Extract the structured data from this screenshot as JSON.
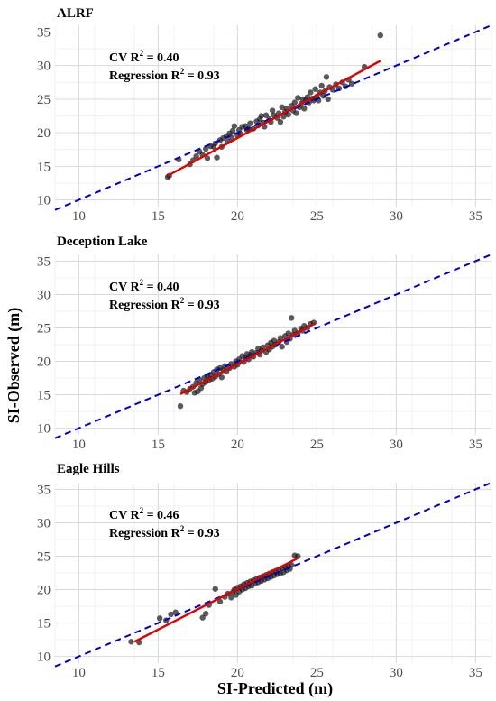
{
  "figure": {
    "xlabel": "SI-Predicted (m)",
    "ylabel": "SI-Observed (m)",
    "colors": {
      "points": "#1a1a1a",
      "regression": "#e00000",
      "one_to_one": "#0000c8",
      "grid": "#d9d9d9"
    }
  },
  "chart_data": [
    {
      "type": "scatter",
      "title": "ALRF",
      "annotation": {
        "cv_text": "CV R",
        "cv_value": " = 0.40",
        "reg_text": "Regression R",
        "reg_value": " = 0.93",
        "sup": "2"
      },
      "xlim": [
        8.5,
        36
      ],
      "ylim": [
        9,
        36
      ],
      "xticks": [
        10,
        15,
        20,
        25,
        30,
        35
      ],
      "yticks": [
        10,
        15,
        20,
        25,
        30,
        35
      ],
      "grid": true,
      "one_to_one_line": {
        "x": [
          8.5,
          36
        ],
        "y": [
          8.5,
          36
        ]
      },
      "regression_line": {
        "x": [
          15.6,
          29.0
        ],
        "y": [
          13.6,
          30.7
        ]
      },
      "points": [
        [
          15.6,
          13.4
        ],
        [
          15.7,
          13.6
        ],
        [
          16.3,
          16.0
        ],
        [
          17.0,
          15.3
        ],
        [
          17.2,
          15.9
        ],
        [
          17.4,
          16.5
        ],
        [
          17.6,
          17.2
        ],
        [
          17.8,
          16.7
        ],
        [
          18.0,
          17.6
        ],
        [
          18.1,
          16.2
        ],
        [
          18.3,
          18.0
        ],
        [
          18.5,
          17.9
        ],
        [
          18.6,
          18.4
        ],
        [
          18.7,
          16.3
        ],
        [
          18.9,
          18.9
        ],
        [
          19.0,
          17.9
        ],
        [
          19.1,
          19.2
        ],
        [
          19.3,
          19.5
        ],
        [
          19.4,
          18.7
        ],
        [
          19.5,
          19.9
        ],
        [
          19.6,
          19.3
        ],
        [
          19.7,
          20.3
        ],
        [
          19.8,
          21.0
        ],
        [
          20.0,
          19.6
        ],
        [
          20.1,
          20.4
        ],
        [
          20.2,
          19.8
        ],
        [
          20.3,
          20.9
        ],
        [
          20.5,
          21.0
        ],
        [
          20.6,
          20.4
        ],
        [
          20.7,
          20.6
        ],
        [
          20.8,
          21.4
        ],
        [
          21.0,
          20.6
        ],
        [
          21.2,
          21.7
        ],
        [
          21.3,
          21.1
        ],
        [
          21.4,
          22.0
        ],
        [
          21.5,
          22.5
        ],
        [
          21.6,
          21.5
        ],
        [
          21.7,
          20.9
        ],
        [
          21.8,
          22.6
        ],
        [
          22.0,
          22.0
        ],
        [
          22.1,
          21.6
        ],
        [
          22.2,
          23.3
        ],
        [
          22.3,
          22.6
        ],
        [
          22.5,
          22.2
        ],
        [
          22.6,
          22.9
        ],
        [
          22.7,
          21.6
        ],
        [
          22.8,
          23.8
        ],
        [
          22.9,
          22.4
        ],
        [
          23.0,
          23.1
        ],
        [
          23.1,
          23.6
        ],
        [
          23.2,
          22.7
        ],
        [
          23.4,
          24.0
        ],
        [
          23.5,
          23.3
        ],
        [
          23.6,
          24.5
        ],
        [
          23.7,
          22.9
        ],
        [
          23.8,
          25.2
        ],
        [
          23.9,
          23.8
        ],
        [
          24.0,
          24.3
        ],
        [
          24.1,
          25.0
        ],
        [
          24.2,
          23.6
        ],
        [
          24.3,
          24.8
        ],
        [
          24.4,
          25.3
        ],
        [
          24.5,
          24.5
        ],
        [
          24.6,
          26.0
        ],
        [
          24.7,
          25.1
        ],
        [
          24.8,
          24.8
        ],
        [
          24.9,
          26.5
        ],
        [
          25.0,
          25.4
        ],
        [
          25.1,
          24.8
        ],
        [
          25.2,
          26.0
        ],
        [
          25.3,
          27.0
        ],
        [
          25.4,
          25.5
        ],
        [
          25.5,
          26.2
        ],
        [
          25.6,
          28.3
        ],
        [
          25.7,
          25.0
        ],
        [
          25.8,
          26.8
        ],
        [
          26.0,
          26.4
        ],
        [
          26.2,
          27.2
        ],
        [
          26.4,
          26.6
        ],
        [
          26.6,
          27.5
        ],
        [
          26.8,
          26.9
        ],
        [
          27.0,
          27.9
        ],
        [
          27.2,
          27.3
        ],
        [
          28.0,
          29.8
        ],
        [
          29.0,
          34.5
        ]
      ]
    },
    {
      "type": "scatter",
      "title": "Deception Lake",
      "annotation": {
        "cv_text": "CV R",
        "cv_value": " = 0.40",
        "reg_text": "Regression R",
        "reg_value": " = 0.93",
        "sup": "2"
      },
      "xlim": [
        8.5,
        36
      ],
      "ylim": [
        9,
        36
      ],
      "xticks": [
        10,
        15,
        20,
        25,
        30,
        35
      ],
      "yticks": [
        10,
        15,
        20,
        25,
        30,
        35
      ],
      "grid": true,
      "one_to_one_line": {
        "x": [
          8.5,
          36
        ],
        "y": [
          8.5,
          36
        ]
      },
      "regression_line": {
        "x": [
          16.4,
          24.9
        ],
        "y": [
          15.1,
          25.7
        ]
      },
      "points": [
        [
          16.4,
          13.3
        ],
        [
          16.6,
          15.6
        ],
        [
          16.8,
          15.4
        ],
        [
          17.0,
          15.9
        ],
        [
          17.2,
          16.2
        ],
        [
          17.3,
          15.3
        ],
        [
          17.4,
          16.8
        ],
        [
          17.5,
          15.5
        ],
        [
          17.6,
          17.2
        ],
        [
          17.7,
          16.0
        ],
        [
          17.8,
          16.6
        ],
        [
          17.9,
          17.5
        ],
        [
          18.0,
          16.9
        ],
        [
          18.1,
          17.8
        ],
        [
          18.2,
          17.2
        ],
        [
          18.3,
          18.0
        ],
        [
          18.4,
          17.4
        ],
        [
          18.5,
          18.4
        ],
        [
          18.6,
          17.7
        ],
        [
          18.7,
          18.8
        ],
        [
          18.8,
          18.1
        ],
        [
          18.9,
          19.0
        ],
        [
          19.0,
          17.6
        ],
        [
          19.1,
          18.7
        ],
        [
          19.2,
          19.3
        ],
        [
          19.3,
          18.5
        ],
        [
          19.5,
          19.0
        ],
        [
          19.6,
          19.6
        ],
        [
          19.8,
          19.2
        ],
        [
          19.9,
          20.0
        ],
        [
          20.0,
          19.5
        ],
        [
          20.1,
          20.3
        ],
        [
          20.3,
          20.8
        ],
        [
          20.4,
          19.9
        ],
        [
          20.5,
          20.5
        ],
        [
          20.6,
          21.1
        ],
        [
          20.7,
          20.3
        ],
        [
          20.8,
          20.9
        ],
        [
          20.9,
          21.4
        ],
        [
          21.0,
          20.7
        ],
        [
          21.2,
          21.3
        ],
        [
          21.3,
          21.9
        ],
        [
          21.4,
          21.0
        ],
        [
          21.5,
          21.6
        ],
        [
          21.6,
          22.1
        ],
        [
          21.8,
          21.4
        ],
        [
          21.9,
          22.4
        ],
        [
          22.0,
          21.8
        ],
        [
          22.1,
          22.8
        ],
        [
          22.2,
          22.2
        ],
        [
          22.3,
          23.1
        ],
        [
          22.4,
          22.5
        ],
        [
          22.6,
          22.9
        ],
        [
          22.7,
          23.5
        ],
        [
          22.8,
          22.2
        ],
        [
          23.0,
          23.8
        ],
        [
          23.1,
          22.9
        ],
        [
          23.2,
          24.2
        ],
        [
          23.3,
          23.4
        ],
        [
          23.4,
          26.5
        ],
        [
          23.5,
          24.0
        ],
        [
          23.6,
          24.6
        ],
        [
          23.8,
          24.2
        ],
        [
          24.0,
          24.9
        ],
        [
          24.1,
          24.6
        ],
        [
          24.2,
          25.3
        ],
        [
          24.4,
          25.0
        ],
        [
          24.6,
          25.6
        ],
        [
          24.8,
          25.8
        ]
      ]
    },
    {
      "type": "scatter",
      "title": "Eagle Hills",
      "annotation": {
        "cv_text": "CV R",
        "cv_value": " = 0.46",
        "reg_text": "Regression R",
        "reg_value": " = 0.93",
        "sup": "2"
      },
      "xlim": [
        8.5,
        36
      ],
      "ylim": [
        9,
        36
      ],
      "xticks": [
        10,
        15,
        20,
        25,
        30,
        35
      ],
      "yticks": [
        10,
        15,
        20,
        25,
        30,
        35
      ],
      "grid": true,
      "one_to_one_line": {
        "x": [
          8.5,
          36
        ],
        "y": [
          8.5,
          36
        ]
      },
      "regression_line": {
        "x": [
          13.5,
          23.8
        ],
        "y": [
          12.2,
          24.7
        ]
      },
      "points": [
        [
          13.3,
          12.2
        ],
        [
          13.8,
          12.1
        ],
        [
          15.1,
          15.7
        ],
        [
          15.5,
          15.4
        ],
        [
          15.8,
          16.3
        ],
        [
          16.1,
          16.6
        ],
        [
          17.8,
          15.8
        ],
        [
          18.0,
          16.4
        ],
        [
          18.2,
          17.7
        ],
        [
          18.6,
          20.1
        ],
        [
          18.9,
          18.2
        ],
        [
          19.2,
          18.9
        ],
        [
          19.4,
          19.4
        ],
        [
          19.6,
          18.8
        ],
        [
          19.7,
          19.6
        ],
        [
          19.8,
          20.0
        ],
        [
          19.9,
          19.2
        ],
        [
          20.0,
          20.3
        ],
        [
          20.1,
          19.7
        ],
        [
          20.2,
          20.5
        ],
        [
          20.3,
          20.0
        ],
        [
          20.4,
          20.8
        ],
        [
          20.5,
          20.2
        ],
        [
          20.6,
          21.0
        ],
        [
          20.7,
          20.5
        ],
        [
          20.8,
          21.2
        ],
        [
          20.9,
          20.6
        ],
        [
          21.0,
          21.4
        ],
        [
          21.1,
          20.9
        ],
        [
          21.2,
          21.6
        ],
        [
          21.3,
          21.1
        ],
        [
          21.4,
          21.8
        ],
        [
          21.5,
          21.3
        ],
        [
          21.6,
          22.0
        ],
        [
          21.7,
          21.5
        ],
        [
          21.8,
          22.2
        ],
        [
          21.9,
          21.7
        ],
        [
          22.0,
          22.4
        ],
        [
          22.1,
          21.9
        ],
        [
          22.2,
          22.6
        ],
        [
          22.3,
          22.1
        ],
        [
          22.4,
          22.8
        ],
        [
          22.5,
          22.3
        ],
        [
          22.6,
          23.0
        ],
        [
          22.7,
          22.4
        ],
        [
          22.8,
          23.2
        ],
        [
          22.9,
          22.6
        ],
        [
          23.0,
          23.4
        ],
        [
          23.1,
          22.9
        ],
        [
          23.2,
          23.5
        ],
        [
          23.3,
          23.1
        ],
        [
          23.4,
          23.7
        ],
        [
          23.6,
          25.1
        ],
        [
          23.8,
          25.0
        ]
      ]
    }
  ]
}
